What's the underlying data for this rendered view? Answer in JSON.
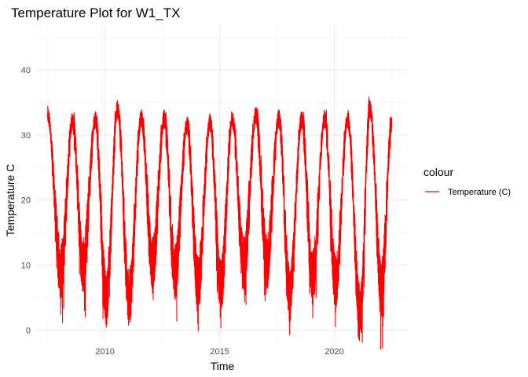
{
  "chart_data": {
    "type": "line",
    "title": "Temperature Plot for W1_TX",
    "xlabel": "Time",
    "ylabel": "Temperature C",
    "xlim": [
      2007.0,
      2023.2
    ],
    "ylim": [
      -1.9,
      46.9
    ],
    "x_ticks": [
      2010,
      2015,
      2020
    ],
    "x_tick_labels": [
      "2010",
      "2015",
      "2020"
    ],
    "y_ticks": [
      0,
      10,
      20,
      30,
      40
    ],
    "y_tick_labels": [
      "0",
      "10",
      "20",
      "30",
      "40"
    ],
    "grid": true,
    "legend": {
      "title": "colour",
      "position": "right",
      "entries": [
        "Temperature (C)"
      ]
    },
    "series": [
      {
        "name": "Temperature (C)",
        "color": "#ff0000",
        "x_start": 2007.5,
        "x_end": 2022.5,
        "yearly_peaks": [
          [
            2007.5,
            33.0
          ],
          [
            2008.58,
            32.0
          ],
          [
            2009.58,
            32.3
          ],
          [
            2010.55,
            34.0
          ],
          [
            2011.58,
            32.5
          ],
          [
            2012.58,
            32.5
          ],
          [
            2013.58,
            31.5
          ],
          [
            2014.58,
            32.0
          ],
          [
            2015.55,
            32.5
          ],
          [
            2016.58,
            33.0
          ],
          [
            2017.58,
            32.5
          ],
          [
            2018.58,
            32.5
          ],
          [
            2019.58,
            32.5
          ],
          [
            2020.58,
            32.5
          ],
          [
            2021.55,
            34.0
          ],
          [
            2022.5,
            31.5
          ]
        ],
        "yearly_lows": [
          [
            2008.08,
            9.0
          ],
          [
            2009.05,
            10.0
          ],
          [
            2010.05,
            4.8
          ],
          [
            2011.05,
            4.8
          ],
          [
            2012.08,
            10.0
          ],
          [
            2013.05,
            9.0
          ],
          [
            2014.05,
            7.0
          ],
          [
            2015.05,
            6.5
          ],
          [
            2016.05,
            10.0
          ],
          [
            2017.05,
            10.5
          ],
          [
            2018.05,
            5.5
          ],
          [
            2019.05,
            8.0
          ],
          [
            2020.05,
            7.5
          ],
          [
            2021.12,
            2.5
          ],
          [
            2022.05,
            6.5
          ]
        ]
      }
    ]
  }
}
